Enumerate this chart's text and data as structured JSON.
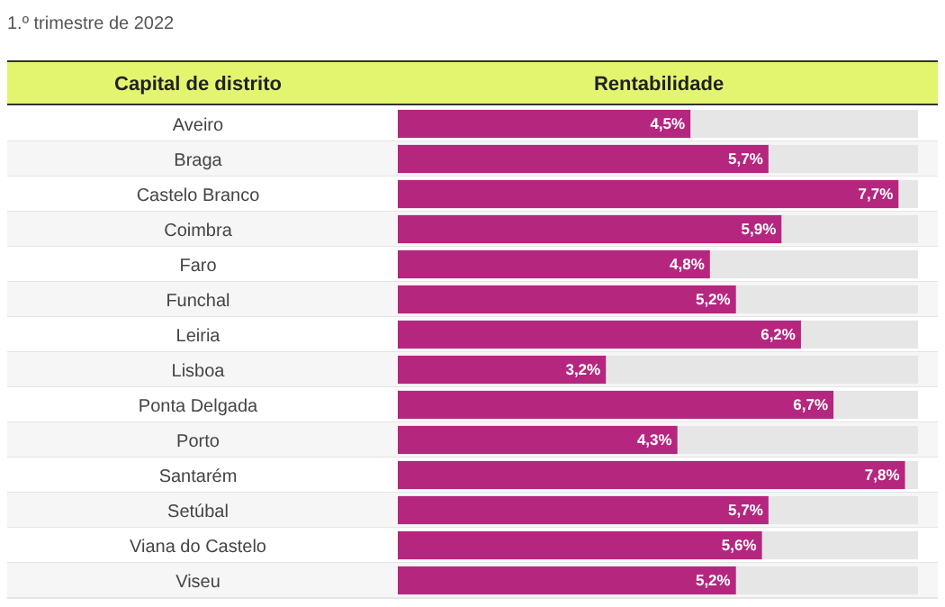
{
  "chart_data": {
    "type": "bar",
    "orientation": "horizontal",
    "title": "1.º trimestre de 2022",
    "ylabel": "Capital de distrito",
    "xlabel": "Rentabilidade",
    "categories": [
      "Aveiro",
      "Braga",
      "Castelo Branco",
      "Coimbra",
      "Faro",
      "Funchal",
      "Leiria",
      "Lisboa",
      "Ponta Delgada",
      "Porto",
      "Santarém",
      "Setúbal",
      "Viana do Castelo",
      "Viseu"
    ],
    "values": [
      4.5,
      5.7,
      7.7,
      5.9,
      4.8,
      5.2,
      6.2,
      3.2,
      6.7,
      4.3,
      7.8,
      5.7,
      5.6,
      5.2
    ],
    "value_labels": [
      "4,5%",
      "5,7%",
      "7,7%",
      "5,9%",
      "4,8%",
      "5,2%",
      "6,2%",
      "3,2%",
      "6,7%",
      "4,3%",
      "7,8%",
      "5,7%",
      "5,6%",
      "5,2%"
    ],
    "color": "#b5267f",
    "xlim": [
      0,
      8
    ]
  }
}
